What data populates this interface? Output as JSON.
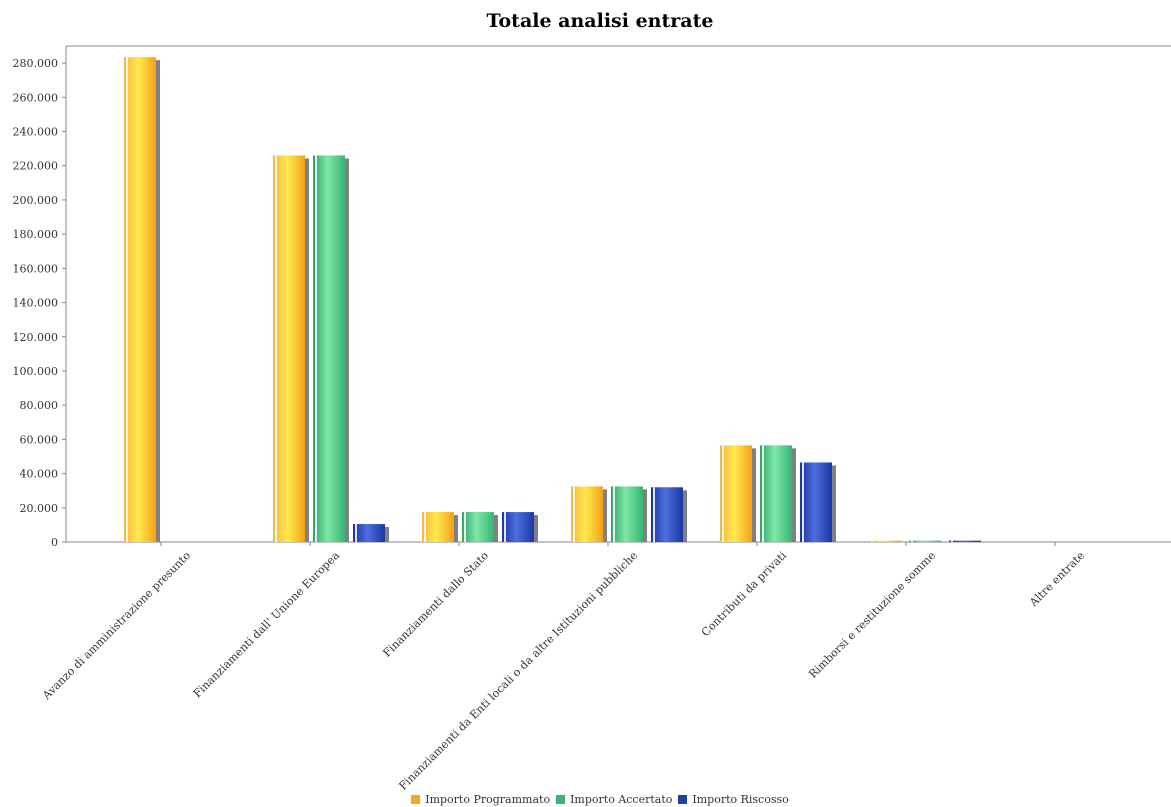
{
  "chart_data": {
    "type": "bar",
    "title": "Totale analisi entrate",
    "xlabel": "",
    "ylabel": "",
    "ylim": [
      0,
      290000
    ],
    "yticks": [
      0,
      20000,
      40000,
      60000,
      80000,
      100000,
      120000,
      140000,
      160000,
      180000,
      200000,
      220000,
      240000,
      260000,
      280000
    ],
    "ytick_labels": [
      "0",
      "20.000",
      "40.000",
      "60.000",
      "80.000",
      "100.000",
      "120.000",
      "140.000",
      "160.000",
      "180.000",
      "200.000",
      "220.000",
      "240.000",
      "260.000",
      "280.000"
    ],
    "categories": [
      "Avanzo di amministrazione presunto",
      "Finanziamenti dall' Unione Europea",
      "Finanziamenti dallo Stato",
      "Finanziamenti da Enti locali o da altre Istituzioni pubbliche",
      "Contributi da privati",
      "Rimborsi e restituzione somme",
      "Altre entrate"
    ],
    "series": [
      {
        "name": "Importo Programmato",
        "color": "#f5a623",
        "values": [
          283500,
          226000,
          17500,
          32500,
          56500,
          800,
          0
        ]
      },
      {
        "name": "Importo Accertato",
        "color": "#3cb371",
        "values": [
          0,
          226000,
          17500,
          32500,
          56500,
          800,
          0
        ]
      },
      {
        "name": "Importo Riscosso",
        "color": "#1f3fa8",
        "values": [
          0,
          10500,
          17500,
          32000,
          46500,
          800,
          0
        ]
      }
    ],
    "legend_position": "bottom",
    "grid": false
  }
}
